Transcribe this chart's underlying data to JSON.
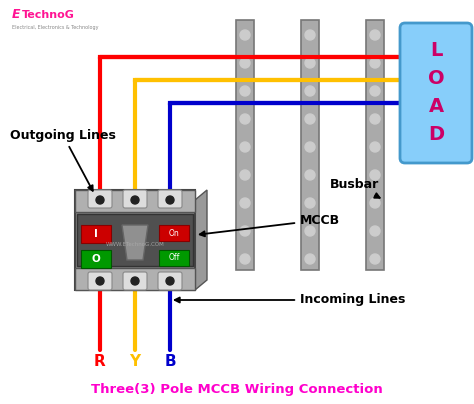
{
  "bg_color": "#ffffff",
  "title": "Three(3) Pole MCCB Wiring Connection",
  "title_color": "#ff00cc",
  "title_fontsize": 9.5,
  "logo_color_e": "#ff1493",
  "logo_color_rest": "#ff1493",
  "wire_colors": [
    "#ff0000",
    "#ffc000",
    "#0000cc"
  ],
  "wire_labels": [
    "R",
    "Y",
    "B"
  ],
  "label_colors": [
    "#ff0000",
    "#ffc000",
    "#0000cc"
  ],
  "busbar_color": "#aaaaaa",
  "busbar_edge": "#888888",
  "load_box_color": "#87CEFA",
  "load_box_edge": "#4499cc",
  "load_text_color": "#cc0066",
  "mccb_body_color": "#808080",
  "mccb_front_color": "#606060",
  "mccb_top_color": "#aaaaaa",
  "arrow_color": "#000000",
  "outgoing_label": "Outgoing Lines",
  "mccb_label": "MCCB",
  "incoming_label": "Incoming Lines",
  "busbar_label": "Busbar",
  "watermark": "WWW.ETechnoG.COM"
}
